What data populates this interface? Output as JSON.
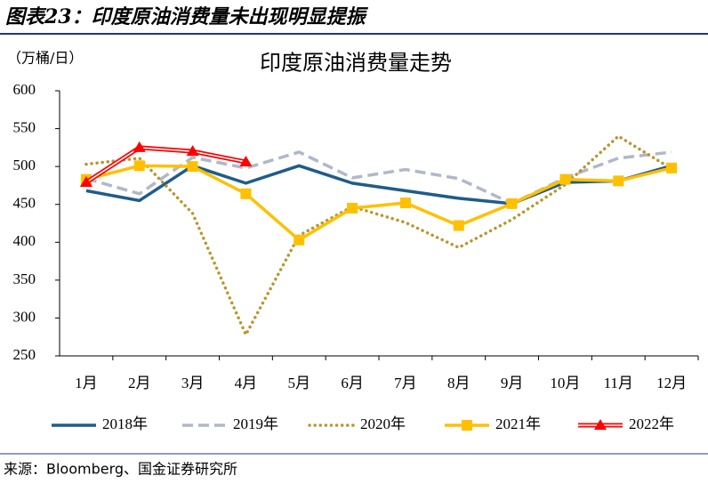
{
  "figure_title": "图表23：印度原油消费量未出现明显提振",
  "source": "来源：Bloomberg、国金证券研究所",
  "chart_data": {
    "type": "line",
    "title": "印度原油消费量走势",
    "y_label": "（万桶/日）",
    "categories": [
      "1月",
      "2月",
      "3月",
      "4月",
      "5月",
      "6月",
      "7月",
      "8月",
      "9月",
      "10月",
      "11月",
      "12月"
    ],
    "ylim": [
      250,
      600
    ],
    "yticks": [
      250,
      300,
      350,
      400,
      450,
      500,
      550,
      600
    ],
    "series": [
      {
        "name": "2018年",
        "color": "#1f5c8b",
        "style": "solid",
        "values": [
          468,
          455,
          501,
          478,
          501,
          478,
          468,
          458,
          451,
          479,
          481,
          501
        ]
      },
      {
        "name": "2019年",
        "color": "#b0b8c8",
        "style": "dashed",
        "values": [
          484,
          464,
          512,
          498,
          519,
          485,
          496,
          484,
          451,
          485,
          511,
          519
        ]
      },
      {
        "name": "2020年",
        "color": "#b8962e",
        "style": "dotted",
        "values": [
          503,
          511,
          438,
          278,
          409,
          447,
          426,
          393,
          430,
          476,
          540,
          497
        ]
      },
      {
        "name": "2021年",
        "color": "#ffc000",
        "style": "solid",
        "marker": "square",
        "values": [
          483,
          501,
          500,
          464,
          403,
          445,
          452,
          422,
          451,
          483,
          481,
          498
        ]
      },
      {
        "name": "2022年",
        "color": "#ff0000",
        "style": "double",
        "marker": "triangle",
        "values": [
          479,
          525,
          520,
          506,
          null,
          null,
          null,
          null,
          null,
          null,
          null,
          null
        ]
      }
    ]
  }
}
